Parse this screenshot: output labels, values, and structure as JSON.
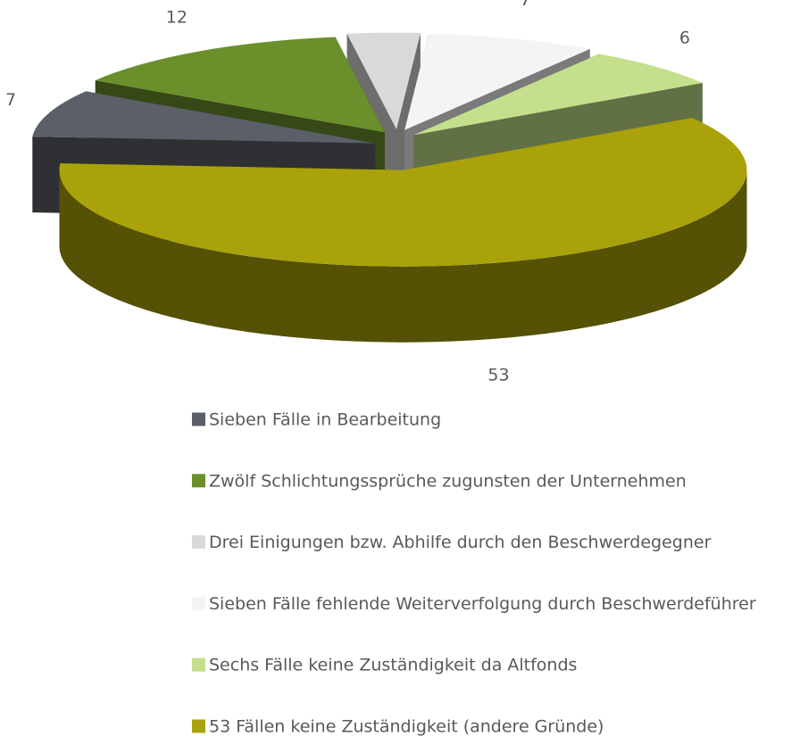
{
  "chart_data": {
    "type": "pie3d",
    "categories": [
      "Sieben Fälle in Bearbeitung",
      "Zwölf Schlichtungssprüche zugunsten der Unternehmen",
      "Drei Einigungen bzw. Abhilfe durch den Beschwerdegegner",
      "Sieben Fälle fehlende Weiterverfolgung durch Beschwerdeführer",
      "Sechs Fälle keine Zuständigkeit da Altfonds",
      "53 Fällen keine Zuständigkeit (andere Gründe)"
    ],
    "values": [
      7,
      12,
      3,
      7,
      6,
      53
    ],
    "colors": [
      "#5b6068",
      "#6b8f2a",
      "#d9d9d9",
      "#f4f4f4",
      "#c4e08c",
      "#a9a20a"
    ],
    "legend": "bottom"
  }
}
